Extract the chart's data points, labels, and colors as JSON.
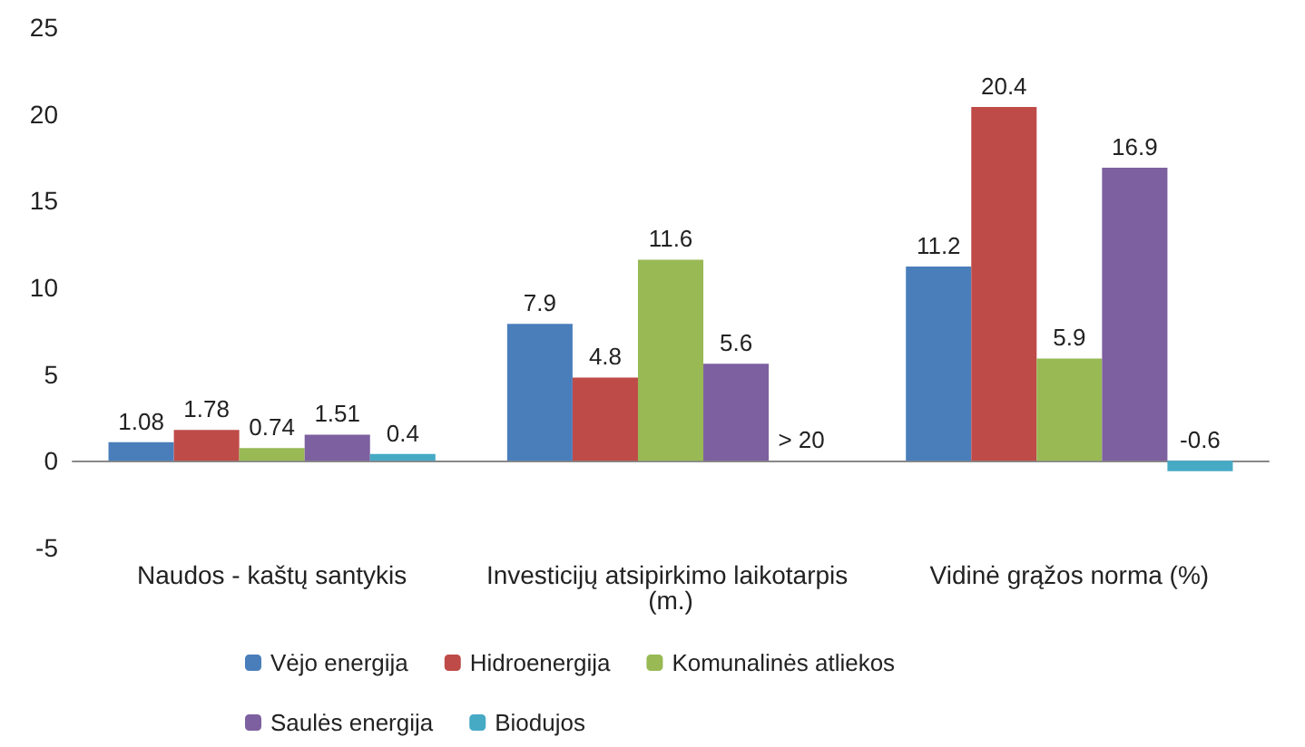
{
  "chart_data": {
    "type": "bar",
    "categories": [
      "Naudos - kaštų santykis",
      "Investicijų atsipirkimo laikotarpis (m.)",
      "Vidinė grąžos norma (%)"
    ],
    "series": [
      {
        "name": "Vėjo energija",
        "color": "#4a7ebb",
        "values": [
          1.08,
          7.9,
          11.2
        ]
      },
      {
        "name": "Hidroenergija",
        "color": "#be4b48",
        "values": [
          1.78,
          4.8,
          20.4
        ]
      },
      {
        "name": "Komunalinės atliekos",
        "color": "#98b954",
        "values": [
          0.74,
          11.6,
          5.9
        ]
      },
      {
        "name": "Saulės energija",
        "color": "#7d60a0",
        "values": [
          1.51,
          5.6,
          16.9
        ]
      },
      {
        "name": "Biodujos",
        "color": "#46aac5",
        "values": [
          0.4,
          null,
          -0.6
        ]
      }
    ],
    "data_labels": true,
    "annotations": [
      "> 20"
    ],
    "ylim": [
      -5,
      25
    ],
    "yticks": [
      -5,
      0,
      5,
      10,
      15,
      20,
      25
    ],
    "legend": "bottom"
  }
}
